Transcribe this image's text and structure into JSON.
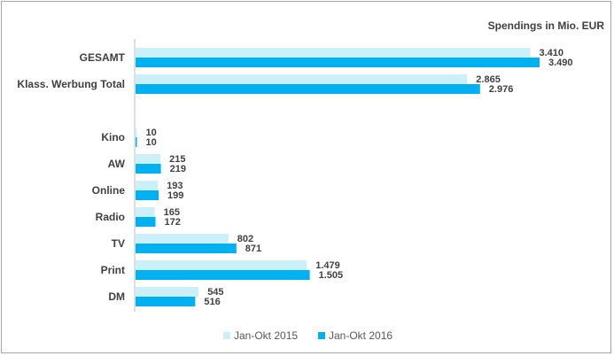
{
  "chart_data": {
    "type": "bar",
    "orientation": "horizontal",
    "title": "Spendings in Mio. EUR",
    "categories": [
      "GESAMT",
      "Klass. Werbung Total",
      "",
      "Kino",
      "AW",
      "Online",
      "Radio",
      "TV",
      "Print",
      "DM"
    ],
    "series": [
      {
        "name": "Jan-Okt 2015",
        "color": "#ccf0fa",
        "values": [
          3410,
          2865,
          null,
          10,
          215,
          193,
          165,
          802,
          1479,
          545
        ],
        "labels": [
          "3.410",
          "2.865",
          "",
          "10",
          "215",
          "193",
          "165",
          "802",
          "1.479",
          "545"
        ]
      },
      {
        "name": "Jan-Okt 2016",
        "color": "#00b0f0",
        "values": [
          3490,
          2976,
          null,
          10,
          219,
          199,
          172,
          871,
          1505,
          516
        ],
        "labels": [
          "3.490",
          "2.976",
          "",
          "10",
          "219",
          "199",
          "172",
          "871",
          "1.505",
          "516"
        ]
      }
    ],
    "xlim": [
      0,
      4000
    ],
    "grid": false,
    "legend_position": "bottom"
  }
}
